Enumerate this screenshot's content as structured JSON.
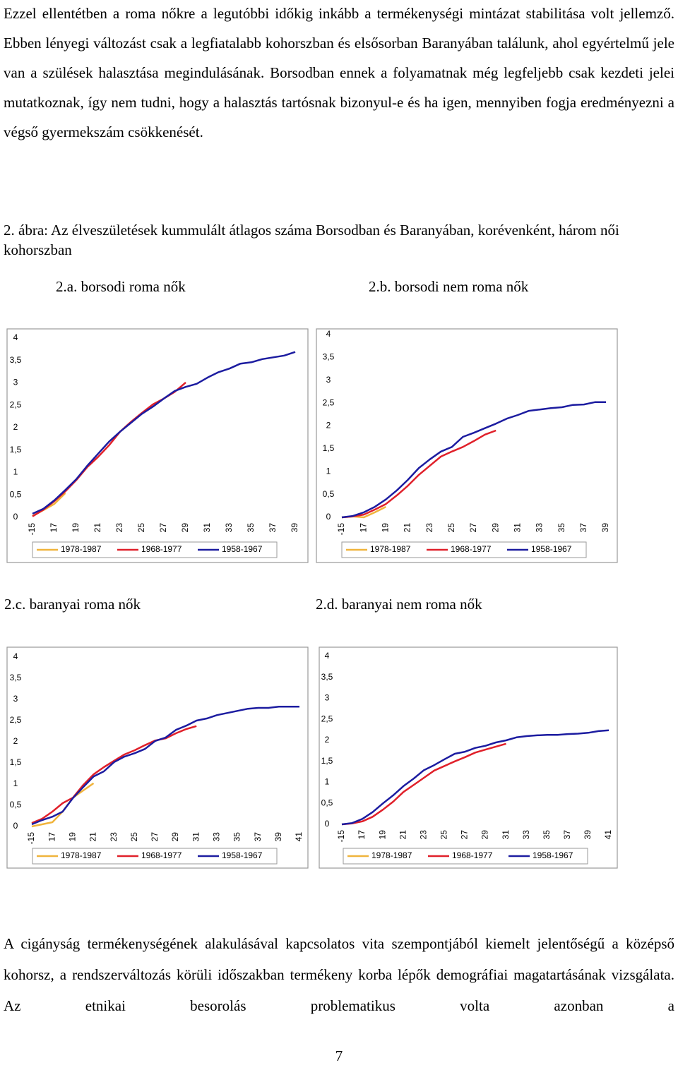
{
  "text_top": "Ezzel ellentétben a roma nőkre a legutóbbi időkig inkább a termékenységi mintázat stabilitása volt jellemző. Ebben lényegi változást csak a legfiatalabb kohorszban és elsősorban Baranyában találunk, ahol egyértelmű jele van a szülések halasztása megindulásának. Borsodban ennek a folyamatnak még legfeljebb csak kezdeti jelei mutatkoznak, így nem tudni, hogy a halasztás tartósnak bizonyul-e és ha igen, mennyiben fogja eredményezni a végső gyermekszám csökkenését.",
  "caption": "2. ábra: Az élveszületések kummulált átlagos száma Borsodban és Baranyában, korévenként, három női kohorszban",
  "text_bottom": "A cigányság termékenységének alakulásával kapcsolatos vita szempontjából kiemelt jelentőségű a középső kohorsz, a rendszerváltozás körüli időszakban termékeny korba lépők demográfiai magatartásának vizsgálata. Az etnikai besorolás problematikus volta azonban a",
  "page_number": "7",
  "chart_data": [
    {
      "type": "line",
      "title": "2.a. borsodi roma nők",
      "categories": [
        "-15",
        null,
        "17",
        null,
        "19",
        null,
        "21",
        null,
        "23",
        null,
        "25",
        null,
        "27",
        null,
        "29",
        null,
        "31",
        null,
        "33",
        null,
        "35",
        null,
        "37",
        null,
        "39"
      ],
      "ylim": [
        0,
        4
      ],
      "yticks": [
        0,
        {
          "value": 0.5,
          "label": "0,5"
        },
        1,
        {
          "value": 1.5,
          "label": "1,5"
        },
        2,
        {
          "value": 2.5,
          "label": "2,5"
        },
        3,
        {
          "value": 3.5,
          "label": "3,5"
        },
        4
      ],
      "series": [
        {
          "name": "1978-1987",
          "color": "#f0b43c",
          "values": [
            0.03,
            0.16,
            0.3,
            0.54,
            null,
            null,
            null,
            null,
            null,
            null,
            null,
            null,
            null,
            null,
            null,
            null,
            null,
            null,
            null,
            null,
            null,
            null,
            null,
            null,
            null
          ]
        },
        {
          "name": "1968-1977",
          "color": "#e0202a",
          "values": [
            0.02,
            0.17,
            0.36,
            0.58,
            0.83,
            1.12,
            1.35,
            1.61,
            1.91,
            2.13,
            2.33,
            2.52,
            2.65,
            2.8,
            3.01,
            null,
            null,
            null,
            null,
            null,
            null,
            null,
            null,
            null,
            null
          ]
        },
        {
          "name": "1958-1967",
          "color": "#1c1ca0",
          "values": [
            0.08,
            0.19,
            0.38,
            0.61,
            0.85,
            1.15,
            1.42,
            1.69,
            1.91,
            2.11,
            2.31,
            2.47,
            2.65,
            2.82,
            2.91,
            2.98,
            3.12,
            3.24,
            3.32,
            3.43,
            3.46,
            3.53,
            3.57,
            3.61,
            3.69
          ]
        }
      ]
    },
    {
      "type": "line",
      "title": "2.b. borsodi nem roma nők",
      "categories": [
        "-15",
        null,
        "17",
        null,
        "19",
        null,
        "21",
        null,
        "23",
        null,
        "25",
        null,
        "27",
        null,
        "29",
        null,
        "31",
        null,
        "33",
        null,
        "35",
        null,
        "37",
        null,
        "39"
      ],
      "ylim": [
        0,
        4
      ],
      "yticks": [
        0,
        {
          "value": 0.5,
          "label": "0,5"
        },
        1,
        {
          "value": 1.5,
          "label": "1,5"
        },
        2,
        {
          "value": 2.5,
          "label": "2,5"
        },
        3,
        {
          "value": 3.5,
          "label": "3,5"
        },
        4
      ],
      "series": [
        {
          "name": "1978-1987",
          "color": "#f0b43c",
          "values": [
            0,
            0.02,
            0,
            0.11,
            0.23,
            null,
            null,
            null,
            null,
            null,
            null,
            null,
            null,
            null,
            null,
            null,
            null,
            null,
            null,
            null,
            null,
            null,
            null,
            null,
            null
          ]
        },
        {
          "name": "1968-1977",
          "color": "#e0202a",
          "values": [
            0,
            0.02,
            0.06,
            0.17,
            0.29,
            0.48,
            0.69,
            0.93,
            1.13,
            1.33,
            1.44,
            1.54,
            1.67,
            1.81,
            1.9,
            null,
            null,
            null,
            null,
            null,
            null,
            null,
            null,
            null,
            null
          ]
        },
        {
          "name": "1958-1967",
          "color": "#1c1ca0",
          "values": [
            0,
            0.03,
            0.11,
            0.23,
            0.39,
            0.59,
            0.82,
            1.08,
            1.27,
            1.44,
            1.54,
            1.76,
            1.85,
            1.95,
            2.05,
            2.16,
            2.24,
            2.33,
            2.36,
            2.39,
            2.41,
            2.46,
            2.47,
            2.52,
            2.52
          ]
        }
      ]
    },
    {
      "type": "line",
      "title": "2.c. baranyai roma nők",
      "categories": [
        "-15",
        null,
        "17",
        null,
        "19",
        null,
        "21",
        null,
        "23",
        null,
        "25",
        null,
        "27",
        null,
        "29",
        null,
        "31",
        null,
        "33",
        null,
        "35",
        null,
        "37",
        null,
        "39",
        null,
        "41"
      ],
      "ylim": [
        0,
        4
      ],
      "yticks": [
        0,
        {
          "value": 0.5,
          "label": "0,5"
        },
        1,
        {
          "value": 1.5,
          "label": "1,5"
        },
        2,
        {
          "value": 2.5,
          "label": "2,5"
        },
        3,
        {
          "value": 3.5,
          "label": "3,5"
        },
        4
      ],
      "series": [
        {
          "name": "1978-1987",
          "color": "#f0b43c",
          "values": [
            0,
            0.05,
            0.1,
            0.35,
            0.68,
            0.85,
            1.02,
            null,
            null,
            null,
            null,
            null,
            null,
            null,
            null,
            null,
            null,
            null,
            null,
            null,
            null,
            null,
            null,
            null,
            null,
            null,
            null
          ]
        },
        {
          "name": "1968-1977",
          "color": "#e0202a",
          "values": [
            0.08,
            0.18,
            0.35,
            0.55,
            0.68,
            0.98,
            1.23,
            1.4,
            1.55,
            1.7,
            1.8,
            1.92,
            2.03,
            2.08,
            2.2,
            2.3,
            2.37,
            null,
            null,
            null,
            null,
            null,
            null,
            null,
            null,
            null,
            null
          ]
        },
        {
          "name": "1958-1967",
          "color": "#1c1ca0",
          "values": [
            0.05,
            0.15,
            0.23,
            0.35,
            0.67,
            0.93,
            1.18,
            1.3,
            1.52,
            1.65,
            1.73,
            1.83,
            2.02,
            2.1,
            2.28,
            2.38,
            2.5,
            2.55,
            2.63,
            2.68,
            2.73,
            2.78,
            2.8,
            2.8,
            2.83,
            2.83,
            2.83
          ]
        }
      ]
    },
    {
      "type": "line",
      "title": "2.d. baranyai nem roma nők",
      "categories": [
        "-15",
        null,
        "17",
        null,
        "19",
        null,
        "21",
        null,
        "23",
        null,
        "25",
        null,
        "27",
        null,
        "29",
        null,
        "31",
        null,
        "33",
        null,
        "35",
        null,
        "37",
        null,
        "39",
        null,
        "41"
      ],
      "ylim": [
        0,
        4
      ],
      "yticks": [
        0,
        {
          "value": 0.5,
          "label": "0,5"
        },
        1,
        {
          "value": 1.5,
          "label": "1,5"
        },
        2,
        {
          "value": 2.5,
          "label": "2,5"
        },
        3,
        {
          "value": 3.5,
          "label": "3,5"
        },
        4
      ],
      "series": [
        {
          "name": "1978-1987",
          "color": "#f0b43c",
          "values": [
            null,
            null,
            null,
            null,
            null,
            null,
            null,
            null,
            null,
            null,
            null,
            null,
            null,
            null,
            null,
            null,
            null,
            null,
            null,
            null,
            null,
            null,
            null,
            null,
            null,
            null,
            null
          ]
        },
        {
          "name": "1968-1977",
          "color": "#e0202a",
          "values": [
            0,
            0.02,
            0.07,
            0.18,
            0.35,
            0.54,
            0.77,
            0.94,
            1.11,
            1.28,
            1.39,
            1.5,
            1.6,
            1.71,
            1.78,
            1.85,
            1.92,
            null,
            null,
            null,
            null,
            null,
            null,
            null,
            null,
            null,
            null
          ]
        },
        {
          "name": "1958-1967",
          "color": "#1c1ca0",
          "values": [
            0,
            0.03,
            0.13,
            0.29,
            0.5,
            0.69,
            0.91,
            1.09,
            1.29,
            1.41,
            1.55,
            1.68,
            1.73,
            1.82,
            1.87,
            1.95,
            2,
            2.07,
            2.1,
            2.12,
            2.13,
            2.13,
            2.15,
            2.16,
            2.18,
            2.22,
            2.24
          ]
        }
      ]
    }
  ]
}
